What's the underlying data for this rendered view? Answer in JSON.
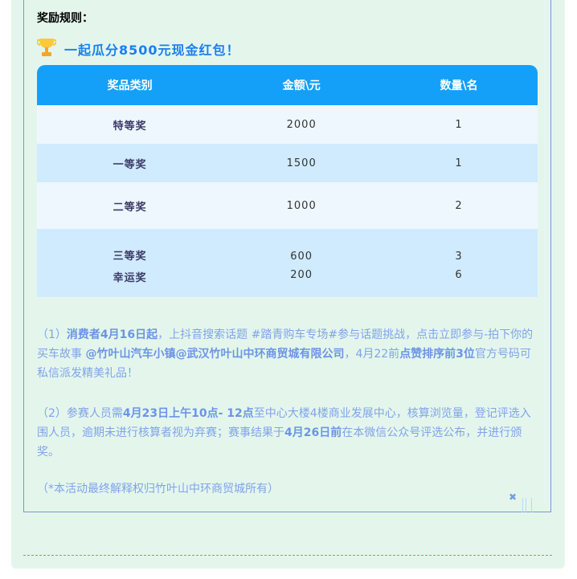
{
  "rules_title": "奖励规则：",
  "headline": "一起瓜分8500元现金红包！",
  "colors": {
    "accent": "#14a0f8",
    "headline": "#1a7ff0",
    "panel": "#e4f6ec",
    "body_text": "#7fa3ea"
  },
  "table": {
    "headers": [
      "奖品类别",
      "金额\\元",
      "数量\\名"
    ],
    "rows": [
      {
        "category": "特等奖",
        "amount": "2000",
        "count": "1"
      },
      {
        "category": "一等奖",
        "amount": "1500",
        "count": "1"
      },
      {
        "category": "二等奖",
        "amount": "1000",
        "count": "2"
      },
      {
        "category": "三等奖",
        "amount": "600",
        "count": "3"
      },
      {
        "category": "幸运奖",
        "amount": "200",
        "count": "6"
      }
    ]
  },
  "p1": {
    "a": "（1）",
    "b": "消费者4月16日起",
    "c": "，上抖音搜索话题 #踏青购车专场#参与话题挑战，点击立即参与-拍下你的买车故事 ",
    "d": "@竹叶山汽车小镇@武汉竹叶山中环商贸城有限公司",
    "e": "，4月22前",
    "f": "点赞排序前3位",
    "g": "官方号码可私信派发精美礼品！"
  },
  "p2": {
    "a": "（2）参赛人员需",
    "b": "4月23日上午10点- 12点",
    "c": "至中心大楼4楼商业发展中心，核算浏览量，登记评选入围人员，逾期未进行核算者视为弃赛；赛事结果于",
    "d": "4月26日前",
    "e": "在本微信公众号评选公布，并进行颁奖。"
  },
  "note": "（*本活动最终解释权归竹叶山中环商贸城所有）"
}
